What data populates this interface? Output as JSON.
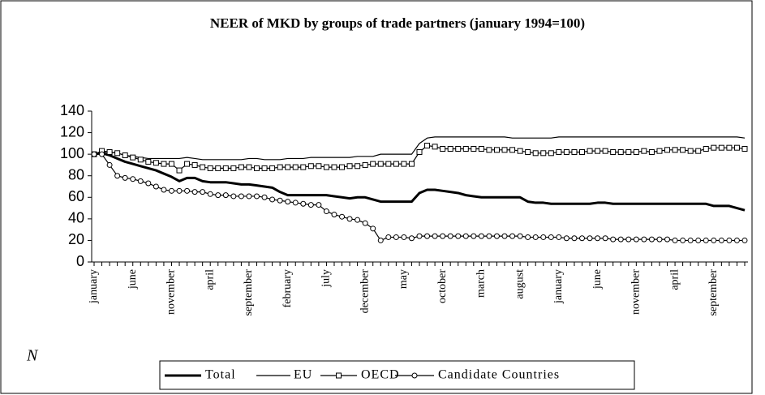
{
  "chart_data": {
    "type": "line",
    "title": "NEER of MKD by groups of trade partners (january 1994=100)",
    "side_text": "N",
    "categories": [
      "january",
      null,
      null,
      null,
      null,
      "june",
      null,
      null,
      null,
      null,
      "november",
      null,
      null,
      null,
      null,
      "april",
      null,
      null,
      null,
      null,
      "september",
      null,
      null,
      null,
      null,
      "february",
      null,
      null,
      null,
      null,
      "july",
      null,
      null,
      null,
      null,
      "december",
      null,
      null,
      null,
      null,
      "may",
      null,
      null,
      null,
      null,
      "october",
      null,
      null,
      null,
      null,
      "march",
      null,
      null,
      null,
      null,
      "august",
      null,
      null,
      null,
      null,
      "january",
      null,
      null,
      null,
      null,
      "june",
      null,
      null,
      null,
      null,
      "november",
      null,
      null,
      null,
      null,
      "april",
      null,
      null,
      null,
      null,
      "september",
      null,
      null,
      null,
      null
    ],
    "ylim": [
      0,
      140
    ],
    "yticks": [
      0,
      20,
      40,
      60,
      80,
      100,
      120,
      140
    ],
    "grid": false,
    "legend": "bottom",
    "series": [
      {
        "name": "Total",
        "color": "#000000",
        "width": 3,
        "marker": "none",
        "values": [
          100,
          101,
          99,
          96,
          93,
          91,
          89,
          87,
          85,
          82,
          79,
          75,
          78,
          78,
          75,
          74,
          74,
          74,
          73,
          72,
          72,
          71,
          70,
          69,
          65,
          62,
          62,
          62,
          62,
          62,
          62,
          61,
          60,
          59,
          60,
          60,
          58,
          56,
          56,
          56,
          56,
          56,
          64,
          67,
          67,
          66,
          65,
          64,
          62,
          61,
          60,
          60,
          60,
          60,
          60,
          60,
          56,
          55,
          55,
          54,
          54,
          54,
          54,
          54,
          54,
          55,
          55,
          54,
          54,
          54,
          54,
          54,
          54,
          54,
          54,
          54,
          54,
          54,
          54,
          54,
          52,
          52,
          52,
          50,
          48
        ]
      },
      {
        "name": "EU",
        "color": "#000000",
        "width": 1.2,
        "marker": "none",
        "values": [
          100,
          102,
          102,
          101,
          99,
          98,
          97,
          96,
          96,
          96,
          96,
          96,
          97,
          96,
          95,
          95,
          95,
          95,
          95,
          95,
          96,
          96,
          95,
          95,
          95,
          96,
          96,
          96,
          97,
          97,
          97,
          97,
          97,
          97,
          98,
          98,
          98,
          100,
          100,
          100,
          100,
          100,
          110,
          115,
          116,
          116,
          116,
          116,
          116,
          116,
          116,
          116,
          116,
          116,
          115,
          115,
          115,
          115,
          115,
          115,
          116,
          116,
          116,
          116,
          116,
          116,
          116,
          116,
          116,
          116,
          116,
          116,
          116,
          116,
          116,
          116,
          116,
          116,
          116,
          116,
          116,
          116,
          116,
          116,
          115
        ]
      },
      {
        "name": "OECD",
        "color": "#000000",
        "width": 1.2,
        "marker": "square",
        "values": [
          100,
          103,
          102,
          101,
          99,
          97,
          95,
          93,
          92,
          91,
          91,
          85,
          91,
          90,
          88,
          87,
          87,
          87,
          87,
          88,
          88,
          87,
          87,
          87,
          88,
          88,
          88,
          88,
          89,
          89,
          88,
          88,
          88,
          89,
          89,
          90,
          91,
          91,
          91,
          91,
          91,
          91,
          102,
          108,
          107,
          105,
          105,
          105,
          105,
          105,
          105,
          104,
          104,
          104,
          104,
          103,
          102,
          101,
          101,
          101,
          102,
          102,
          102,
          102,
          103,
          103,
          103,
          102,
          102,
          102,
          102,
          103,
          102,
          103,
          104,
          104,
          104,
          103,
          103,
          105,
          106,
          106,
          106,
          106,
          105
        ]
      },
      {
        "name": "Candidate Countries",
        "color": "#000000",
        "width": 1.2,
        "marker": "circle",
        "values": [
          100,
          100,
          90,
          80,
          78,
          77,
          75,
          73,
          70,
          67,
          66,
          66,
          66,
          65,
          65,
          63,
          62,
          62,
          61,
          61,
          61,
          61,
          60,
          58,
          57,
          56,
          55,
          54,
          53,
          53,
          47,
          44,
          42,
          40,
          39,
          36,
          31,
          20,
          23,
          23,
          23,
          22,
          24,
          24,
          24,
          24,
          24,
          24,
          24,
          24,
          24,
          24,
          24,
          24,
          24,
          24,
          23,
          23,
          23,
          23,
          23,
          22,
          22,
          22,
          22,
          22,
          22,
          21,
          21,
          21,
          21,
          21,
          21,
          21,
          21,
          20,
          20,
          20,
          20,
          20,
          20,
          20,
          20,
          20,
          20
        ]
      }
    ]
  }
}
